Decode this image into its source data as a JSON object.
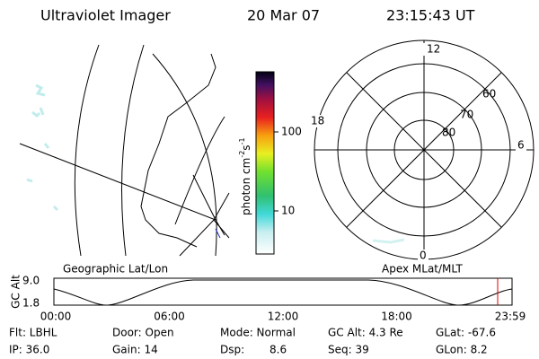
{
  "header": {
    "instrument": "Ultraviolet Imager",
    "date": "20 Mar 07",
    "time": "23:15:43 UT"
  },
  "map_panel": {
    "caption": "Geographic Lat/Lon"
  },
  "colorbar": {
    "label": "photon cm",
    "exp1": "-2",
    "unit2": "s",
    "exp2": "-1",
    "tick_high": "100",
    "tick_low": "10"
  },
  "polar_panel": {
    "caption": "Apex MLat/MLT",
    "mlt_top": "12",
    "mlt_left": "18",
    "mlt_right": "6",
    "mlt_bottom": "0",
    "lat_outer": "60",
    "lat_mid": "70",
    "lat_inner": "80"
  },
  "altitude_strip": {
    "axis_label": "GC Alt",
    "max": "9.0",
    "min": "1.8",
    "times": [
      "00:00",
      "06:00",
      "12:00",
      "18:00",
      "23:59"
    ]
  },
  "footer": {
    "rows": [
      [
        "Flt: LBHL",
        "Door: Open",
        "Mode: Normal",
        "GC Alt: 4.3 Re",
        "GLat: -67.6"
      ],
      [
        "IP: 36.0",
        "Gain: 14",
        "Dsp:",
        "Seq: 39",
        "GLon: 8.2"
      ]
    ],
    "dsp_value": "8.6"
  }
}
